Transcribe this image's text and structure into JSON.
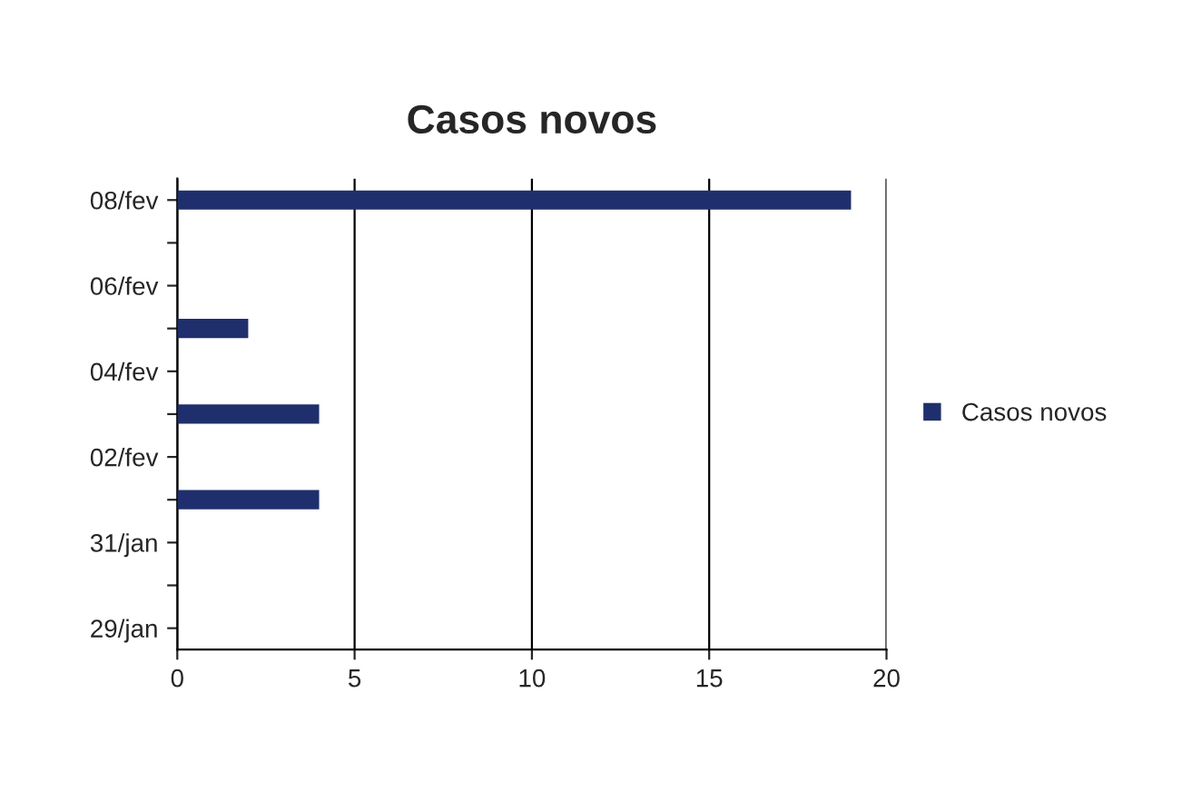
{
  "chart_data": {
    "type": "bar",
    "title": "Casos novos",
    "orientation": "horizontal",
    "categories": [
      "08/fev",
      null,
      "06/fev",
      null,
      "04/fev",
      null,
      "02/fev",
      null,
      "31/jan",
      null,
      "29/jan"
    ],
    "series": [
      {
        "name": "Casos novos",
        "color": "#1f2f6e",
        "values": [
          19,
          null,
          null,
          2,
          null,
          4,
          null,
          4,
          null,
          null,
          null
        ]
      }
    ],
    "xlim": [
      0,
      20
    ],
    "xticks": [
      0,
      5,
      10,
      15,
      20
    ],
    "grid": "x",
    "legend": "right"
  }
}
